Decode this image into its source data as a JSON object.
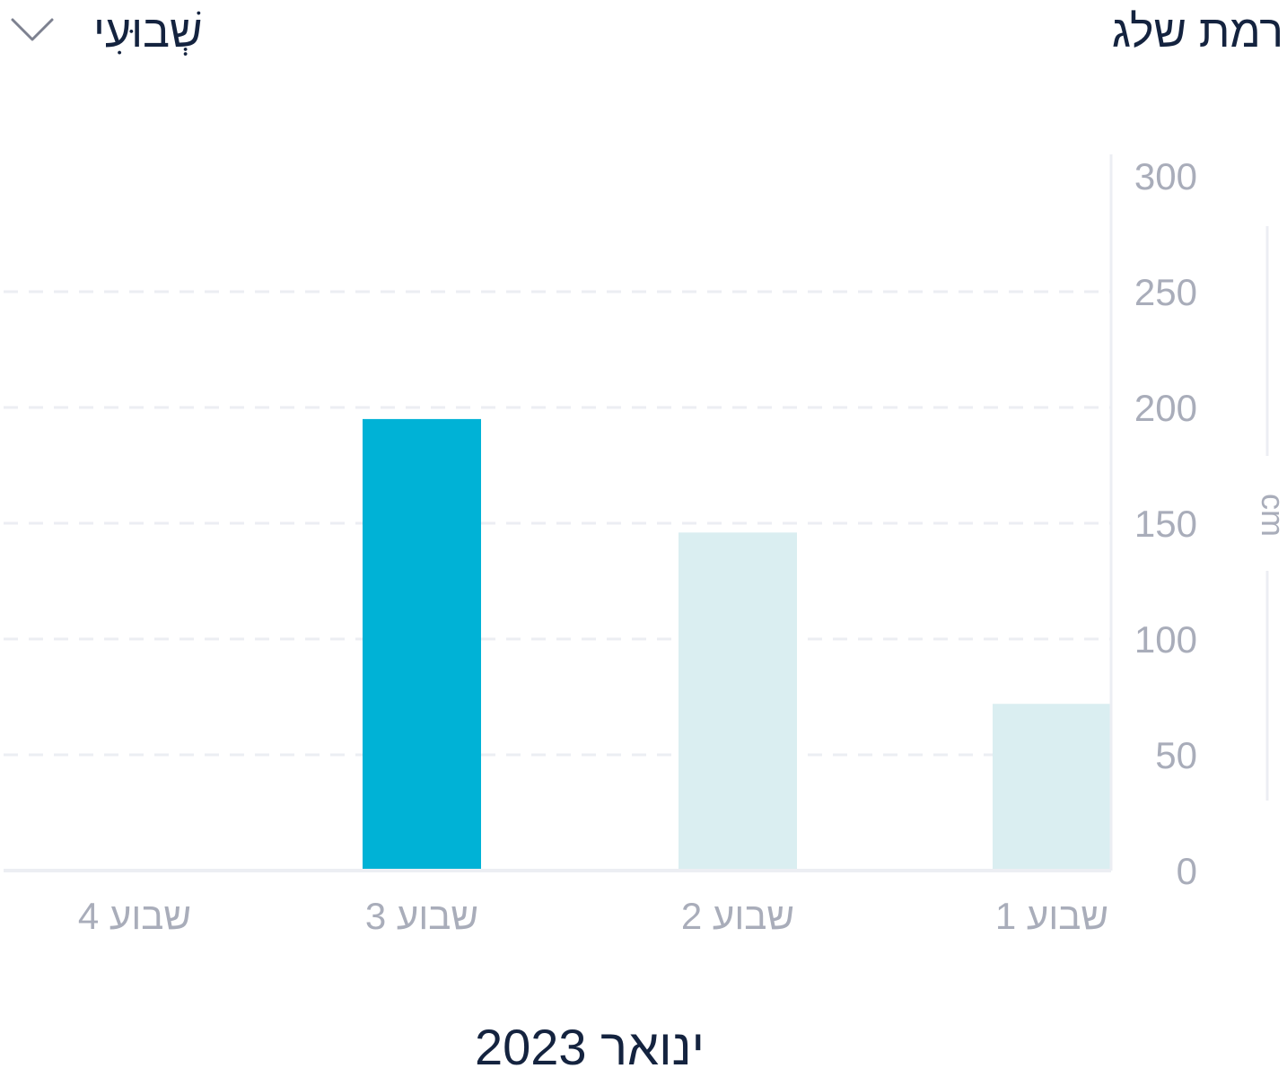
{
  "header": {
    "title": "רמת שלג",
    "period_label": "שְׁבוּעִי",
    "dropdown_icon": "chevron-down-icon"
  },
  "colors": {
    "highlight_bar": "#00b2d6",
    "bar": "#daeef1",
    "grid": "#eceef3",
    "axis_text": "#a9adba",
    "title_text": "#14233f"
  },
  "chart_data": {
    "type": "bar",
    "title": "רמת שלג",
    "xlabel": "ינואר 2023",
    "ylabel": "cm",
    "categories": [
      "שבוע 1",
      "שבוע 2",
      "שבוע 3",
      "שבוע 4"
    ],
    "values": [
      72,
      146,
      195,
      0
    ],
    "highlighted_category": "שבוע 3",
    "ylim": [
      0,
      300
    ],
    "yticks": [
      0,
      50,
      100,
      150,
      200,
      250,
      300
    ],
    "grid": true,
    "y_axis_side": "right",
    "x_axis_direction": "right-to-left"
  }
}
